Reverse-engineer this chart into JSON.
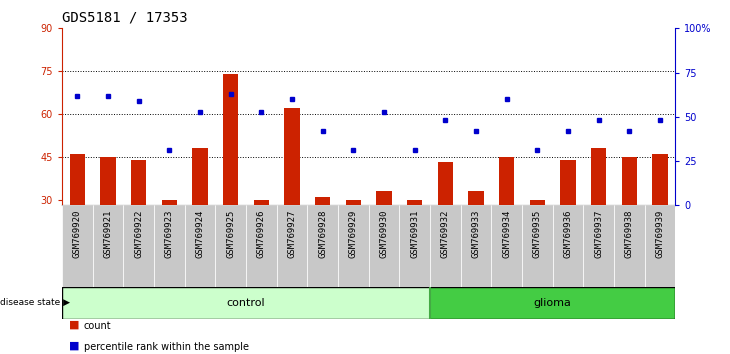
{
  "title": "GDS5181 / 17353",
  "samples": [
    "GSM769920",
    "GSM769921",
    "GSM769922",
    "GSM769923",
    "GSM769924",
    "GSM769925",
    "GSM769926",
    "GSM769927",
    "GSM769928",
    "GSM769929",
    "GSM769930",
    "GSM769931",
    "GSM769932",
    "GSM769933",
    "GSM769934",
    "GSM769935",
    "GSM769936",
    "GSM769937",
    "GSM769938",
    "GSM769939"
  ],
  "counts": [
    46,
    45,
    44,
    30,
    48,
    74,
    30,
    62,
    31,
    30,
    33,
    30,
    43,
    33,
    45,
    30,
    44,
    48,
    45,
    46
  ],
  "percentiles": [
    62,
    62,
    59,
    31,
    53,
    63,
    53,
    60,
    42,
    31,
    53,
    31,
    48,
    42,
    60,
    31,
    42,
    48,
    42,
    48
  ],
  "control_count": 12,
  "glioma_count": 8,
  "ylim_left": [
    28,
    90
  ],
  "ylim_right": [
    0,
    100
  ],
  "yticks_left": [
    30,
    45,
    60,
    75,
    90
  ],
  "yticks_right": [
    0,
    25,
    50,
    75,
    100
  ],
  "bar_color": "#cc2200",
  "marker_color": "#0000cc",
  "control_bg_light": "#ccffcc",
  "control_bg_dark": "#44bb44",
  "glioma_bg_light": "#44cc44",
  "glioma_bg_dark": "#33aa33",
  "label_bg": "#bbbbbb",
  "grid_color": "black",
  "title_fontsize": 10,
  "tick_fontsize": 7,
  "label_fontsize": 8,
  "bar_width": 0.5
}
